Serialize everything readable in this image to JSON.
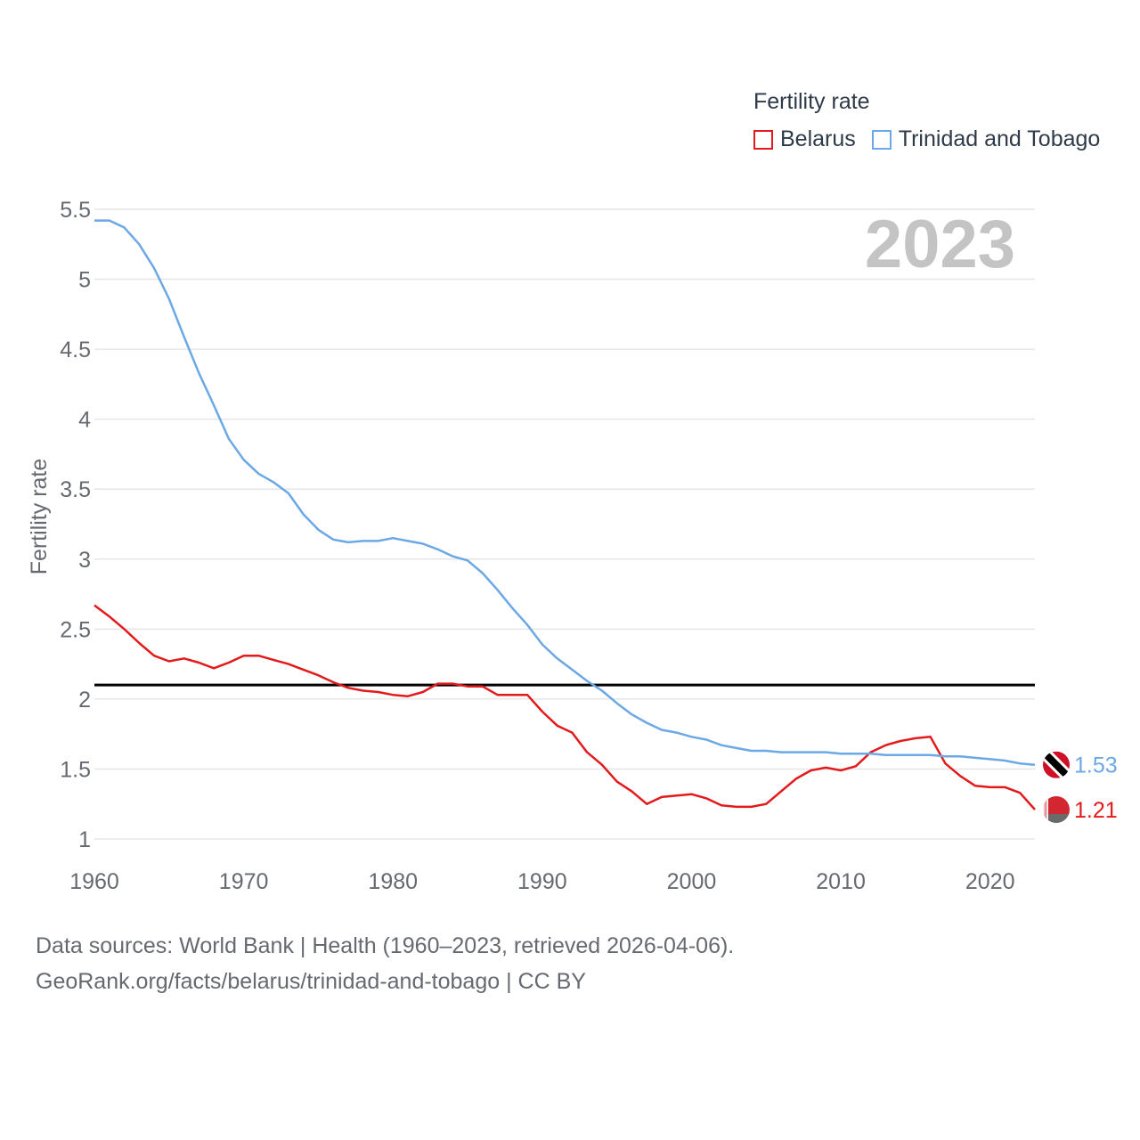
{
  "legend": {
    "title": "Fertility rate",
    "items": [
      {
        "label": "Belarus",
        "color": "#e31a1c"
      },
      {
        "label": "Trinidad and Tobago",
        "color": "#6ba8e5"
      }
    ]
  },
  "year_label": "2023",
  "footer": {
    "line1": "Data sources: World Bank | Health (1960–2023, retrieved 2026-04-06).",
    "line2": "GeoRank.org/facts/belarus/trinidad-and-tobago | CC BY"
  },
  "chart_data": {
    "type": "line",
    "title": "Fertility rate",
    "xlabel": "",
    "ylabel": "Fertility rate",
    "xlim": [
      1960,
      2023
    ],
    "ylim": [
      1,
      5.5
    ],
    "xticks": [
      "1960",
      "1970",
      "1980",
      "1990",
      "2000",
      "2010",
      "2020"
    ],
    "yticks": [
      "1",
      "1.5",
      "2",
      "2.5",
      "3",
      "3.5",
      "4",
      "4.5",
      "5",
      "5.5"
    ],
    "grid": true,
    "reference_line": {
      "y": 2.1,
      "color": "#000000"
    },
    "x": [
      1960,
      1961,
      1962,
      1963,
      1964,
      1965,
      1966,
      1967,
      1968,
      1969,
      1970,
      1971,
      1972,
      1973,
      1974,
      1975,
      1976,
      1977,
      1978,
      1979,
      1980,
      1981,
      1982,
      1983,
      1984,
      1985,
      1986,
      1987,
      1988,
      1989,
      1990,
      1991,
      1992,
      1993,
      1994,
      1995,
      1996,
      1997,
      1998,
      1999,
      2000,
      2001,
      2002,
      2003,
      2004,
      2005,
      2006,
      2007,
      2008,
      2009,
      2010,
      2011,
      2012,
      2013,
      2014,
      2015,
      2016,
      2017,
      2018,
      2019,
      2020,
      2021,
      2022,
      2023
    ],
    "series": [
      {
        "name": "Belarus",
        "color": "#e31a1c",
        "end_label": "1.21",
        "values": [
          2.67,
          2.59,
          2.5,
          2.4,
          2.31,
          2.27,
          2.29,
          2.26,
          2.22,
          2.26,
          2.31,
          2.31,
          2.28,
          2.25,
          2.21,
          2.17,
          2.12,
          2.08,
          2.06,
          2.05,
          2.03,
          2.02,
          2.05,
          2.11,
          2.11,
          2.09,
          2.09,
          2.03,
          2.03,
          2.03,
          1.91,
          1.81,
          1.76,
          1.62,
          1.53,
          1.41,
          1.34,
          1.25,
          1.3,
          1.31,
          1.32,
          1.29,
          1.24,
          1.23,
          1.23,
          1.25,
          1.34,
          1.43,
          1.49,
          1.51,
          1.49,
          1.52,
          1.62,
          1.67,
          1.7,
          1.72,
          1.73,
          1.54,
          1.45,
          1.38,
          1.37,
          1.37,
          1.33,
          1.21
        ]
      },
      {
        "name": "Trinidad and Tobago",
        "color": "#6ba8e5",
        "end_label": "1.53",
        "values": [
          5.42,
          5.42,
          5.37,
          5.25,
          5.08,
          4.86,
          4.59,
          4.33,
          4.1,
          3.86,
          3.71,
          3.61,
          3.55,
          3.47,
          3.32,
          3.21,
          3.14,
          3.12,
          3.13,
          3.13,
          3.15,
          3.13,
          3.11,
          3.07,
          3.02,
          2.99,
          2.9,
          2.78,
          2.65,
          2.53,
          2.39,
          2.29,
          2.21,
          2.13,
          2.06,
          1.97,
          1.89,
          1.83,
          1.78,
          1.76,
          1.73,
          1.71,
          1.67,
          1.65,
          1.63,
          1.63,
          1.62,
          1.62,
          1.62,
          1.62,
          1.61,
          1.61,
          1.61,
          1.6,
          1.6,
          1.6,
          1.6,
          1.59,
          1.59,
          1.58,
          1.57,
          1.56,
          1.54,
          1.53
        ]
      }
    ]
  }
}
